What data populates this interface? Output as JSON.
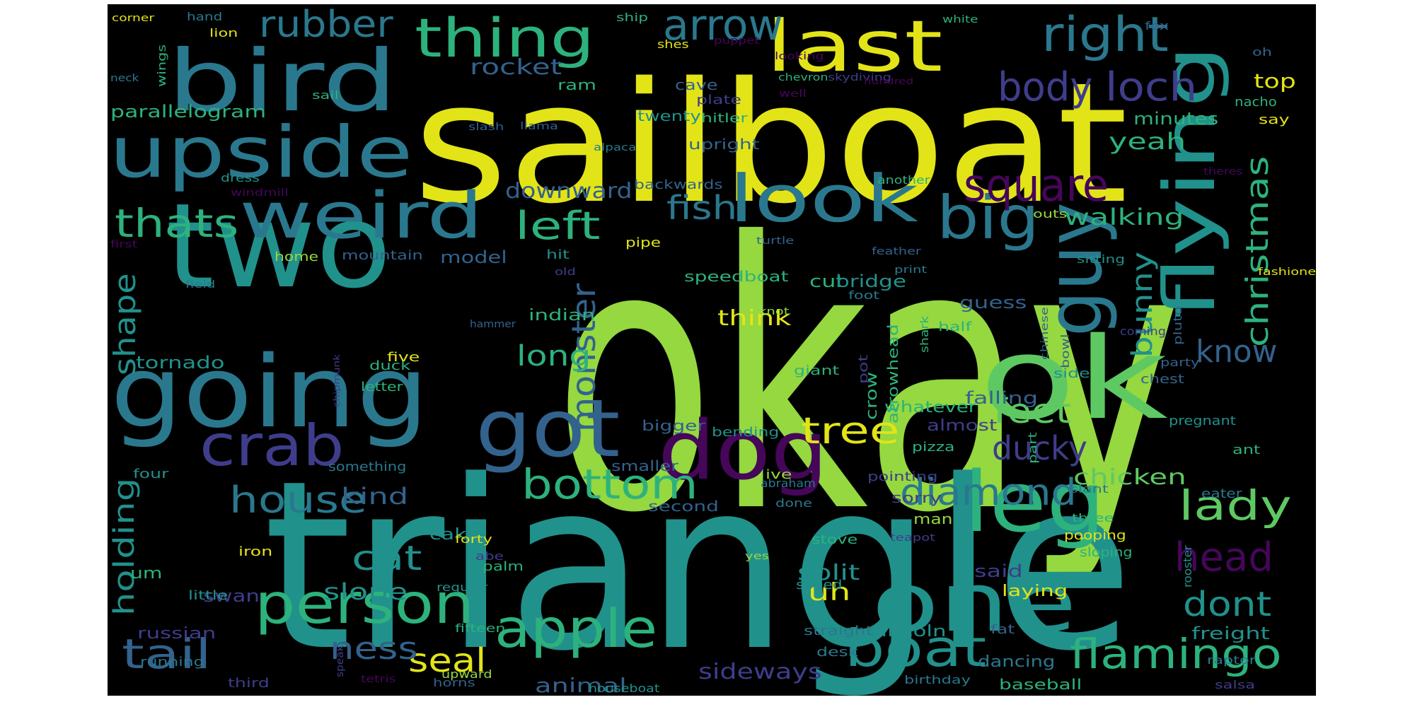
{
  "cloud": {
    "palette": {
      "purple": "#46065a",
      "indigo": "#3f3d8b",
      "blue": "#33628d",
      "steel": "#2a788e",
      "teal": "#21918c",
      "green": "#2db27d",
      "lime": "#5ec962",
      "yellowgreen": "#95d840",
      "yellow": "#e2e418"
    },
    "words": [
      {
        "text": "okay",
        "color": "yellowgreen"
      },
      {
        "text": "triangle",
        "color": "teal"
      },
      {
        "text": "sailboat",
        "color": "yellow"
      },
      {
        "text": "two",
        "color": "teal"
      },
      {
        "text": "ok",
        "color": "lime"
      },
      {
        "text": "going",
        "color": "steel"
      },
      {
        "text": "bird",
        "color": "steel"
      },
      {
        "text": "upside",
        "color": "steel"
      },
      {
        "text": "weird",
        "color": "steel"
      },
      {
        "text": "look",
        "color": "steel"
      },
      {
        "text": "got",
        "color": "blue"
      },
      {
        "text": "dog",
        "color": "purple"
      },
      {
        "text": "one",
        "color": "teal"
      },
      {
        "text": "leg",
        "color": "green"
      },
      {
        "text": "guy",
        "color": "steel"
      },
      {
        "text": "flying",
        "color": "teal"
      },
      {
        "text": "last",
        "color": "yellow"
      },
      {
        "text": "thing",
        "color": "green"
      },
      {
        "text": "arrow",
        "color": "steel"
      },
      {
        "text": "crab",
        "color": "indigo"
      },
      {
        "text": "person",
        "color": "green"
      },
      {
        "text": "apple",
        "color": "green"
      },
      {
        "text": "boat",
        "color": "teal"
      },
      {
        "text": "big",
        "color": "steel"
      },
      {
        "text": "right",
        "color": "steel"
      },
      {
        "text": "square",
        "color": "purple"
      },
      {
        "text": "loch",
        "color": "indigo"
      },
      {
        "text": "body",
        "color": "indigo"
      },
      {
        "text": "flamingo",
        "color": "green"
      },
      {
        "text": "lady",
        "color": "lime"
      },
      {
        "text": "bottom",
        "color": "green"
      },
      {
        "text": "tree",
        "color": "yellow"
      },
      {
        "text": "diamond",
        "color": "steel"
      },
      {
        "text": "head",
        "color": "purple"
      },
      {
        "text": "tail",
        "color": "blue"
      },
      {
        "text": "thats",
        "color": "green"
      },
      {
        "text": "rubber",
        "color": "steel"
      },
      {
        "text": "left",
        "color": "green"
      },
      {
        "text": "house",
        "color": "steel"
      },
      {
        "text": "monster",
        "color": "blue"
      },
      {
        "text": "christmas",
        "color": "green"
      },
      {
        "text": "fish",
        "color": "steel"
      },
      {
        "text": "feet",
        "color": "lime"
      },
      {
        "text": "ducky",
        "color": "indigo"
      },
      {
        "text": "seal",
        "color": "yellow"
      },
      {
        "text": "cat",
        "color": "teal"
      },
      {
        "text": "know",
        "color": "blue"
      },
      {
        "text": "dont",
        "color": "teal"
      },
      {
        "text": "shape",
        "color": "teal"
      },
      {
        "text": "holding",
        "color": "teal"
      },
      {
        "text": "long",
        "color": "green"
      },
      {
        "text": "bunny",
        "color": "teal"
      },
      {
        "text": "ness",
        "color": "blue"
      },
      {
        "text": "rocket",
        "color": "blue"
      },
      {
        "text": "yeah",
        "color": "green"
      },
      {
        "text": "walking",
        "color": "green"
      },
      {
        "text": "downward",
        "color": "blue"
      },
      {
        "text": "kind",
        "color": "blue"
      },
      {
        "text": "chicken",
        "color": "lime"
      },
      {
        "text": "slope",
        "color": "teal"
      },
      {
        "text": "sideways",
        "color": "indigo"
      },
      {
        "text": "animal",
        "color": "blue"
      },
      {
        "text": "split",
        "color": "teal"
      },
      {
        "text": "uh",
        "color": "yellow"
      },
      {
        "text": "top",
        "color": "yellow"
      },
      {
        "text": "think",
        "color": "yellow"
      },
      {
        "text": "parallelogram",
        "color": "green"
      },
      {
        "text": "minutes",
        "color": "green"
      },
      {
        "text": "model",
        "color": "blue"
      },
      {
        "text": "freight",
        "color": "teal"
      },
      {
        "text": "cut",
        "color": "green"
      },
      {
        "text": "bridge",
        "color": "teal"
      },
      {
        "text": "guess",
        "color": "blue"
      },
      {
        "text": "falling",
        "color": "blue"
      },
      {
        "text": "tornado",
        "color": "teal"
      },
      {
        "text": "swan",
        "color": "indigo"
      },
      {
        "text": "um",
        "color": "green"
      },
      {
        "text": "indian",
        "color": "green"
      },
      {
        "text": "russian",
        "color": "indigo"
      },
      {
        "text": "whatever",
        "color": "green"
      },
      {
        "text": "almost",
        "color": "indigo"
      },
      {
        "text": "speedboat",
        "color": "green"
      },
      {
        "text": "crow",
        "color": "green"
      },
      {
        "text": "arrowhead",
        "color": "green"
      },
      {
        "text": "sorry",
        "color": "indigo"
      },
      {
        "text": "said",
        "color": "indigo"
      },
      {
        "text": "laying",
        "color": "yellow"
      },
      {
        "text": "dancing",
        "color": "steel"
      },
      {
        "text": "baseball",
        "color": "green"
      },
      {
        "text": "lincoln",
        "color": "teal"
      },
      {
        "text": "ram",
        "color": "green"
      },
      {
        "text": "cave",
        "color": "blue"
      },
      {
        "text": "twenty",
        "color": "teal"
      },
      {
        "text": "upright",
        "color": "blue"
      },
      {
        "text": "hitler",
        "color": "green"
      },
      {
        "text": "plate",
        "color": "indigo"
      },
      {
        "text": "backwards",
        "color": "blue"
      },
      {
        "text": "bigger",
        "color": "blue"
      },
      {
        "text": "smaller",
        "color": "blue"
      },
      {
        "text": "second",
        "color": "blue"
      },
      {
        "text": "cake",
        "color": "teal"
      },
      {
        "text": "iron",
        "color": "yellow"
      },
      {
        "text": "bending",
        "color": "teal"
      },
      {
        "text": "hit",
        "color": "teal"
      },
      {
        "text": "pointing",
        "color": "indigo"
      },
      {
        "text": "half",
        "color": "green"
      },
      {
        "text": "giant",
        "color": "green"
      },
      {
        "text": "pot",
        "color": "indigo"
      },
      {
        "text": "ive",
        "color": "yellowgreen"
      },
      {
        "text": "duck",
        "color": "green"
      },
      {
        "text": "home",
        "color": "yellowgreen"
      },
      {
        "text": "mountain",
        "color": "blue"
      },
      {
        "text": "palm",
        "color": "green"
      },
      {
        "text": "man",
        "color": "yellowgreen"
      },
      {
        "text": "speed",
        "color": "teal"
      },
      {
        "text": "desk",
        "color": "steel"
      },
      {
        "text": "straight",
        "color": "steel"
      },
      {
        "text": "fat",
        "color": "blue"
      },
      {
        "text": "side",
        "color": "teal"
      },
      {
        "text": "chest",
        "color": "blue"
      },
      {
        "text": "pregnant",
        "color": "teal"
      },
      {
        "text": "ant",
        "color": "green"
      },
      {
        "text": "eater",
        "color": "steel"
      },
      {
        "text": "stove",
        "color": "green"
      },
      {
        "text": "pooping",
        "color": "yellow"
      },
      {
        "text": "sloping",
        "color": "green"
      },
      {
        "text": "pizza",
        "color": "green"
      },
      {
        "text": "sitting",
        "color": "teal"
      },
      {
        "text": "outs",
        "color": "yellowgreen"
      },
      {
        "text": "say",
        "color": "yellow"
      },
      {
        "text": "nacho",
        "color": "green"
      },
      {
        "text": "pipe",
        "color": "yellow"
      },
      {
        "text": "four",
        "color": "teal"
      },
      {
        "text": "five",
        "color": "yellow"
      },
      {
        "text": "letter",
        "color": "green"
      },
      {
        "text": "little",
        "color": "teal"
      },
      {
        "text": "running",
        "color": "steel"
      },
      {
        "text": "third",
        "color": "indigo"
      },
      {
        "text": "something",
        "color": "steel"
      },
      {
        "text": "regular",
        "color": "teal"
      },
      {
        "text": "forty",
        "color": "yellow"
      },
      {
        "text": "abe",
        "color": "indigo"
      },
      {
        "text": "fifteen",
        "color": "green"
      },
      {
        "text": "upward",
        "color": "yellowgreen"
      },
      {
        "text": "horns",
        "color": "blue"
      },
      {
        "text": "tetris",
        "color": "purple"
      },
      {
        "text": "speak",
        "color": "indigo"
      },
      {
        "text": "houseboat",
        "color": "teal"
      },
      {
        "text": "birthday",
        "color": "steel"
      },
      {
        "text": "raptor",
        "color": "steel"
      },
      {
        "text": "salsa",
        "color": "indigo"
      },
      {
        "text": "rooster",
        "color": "teal"
      },
      {
        "text": "yes",
        "color": "yellowgreen"
      },
      {
        "text": "done",
        "color": "steel"
      },
      {
        "text": "abraham",
        "color": "steel"
      },
      {
        "text": "three",
        "color": "green"
      },
      {
        "text": "slant",
        "color": "steel"
      },
      {
        "text": "teapot",
        "color": "indigo"
      },
      {
        "text": "shark",
        "color": "green"
      },
      {
        "text": "chinese",
        "color": "blue"
      },
      {
        "text": "bowl",
        "color": "blue"
      },
      {
        "text": "pluto",
        "color": "blue"
      },
      {
        "text": "part",
        "color": "green"
      },
      {
        "text": "party",
        "color": "blue"
      },
      {
        "text": "coming",
        "color": "indigo"
      },
      {
        "text": "fashioned",
        "color": "yellow"
      },
      {
        "text": "old",
        "color": "indigo"
      },
      {
        "text": "print",
        "color": "steel"
      },
      {
        "text": "feather",
        "color": "blue"
      },
      {
        "text": "turtle",
        "color": "blue"
      },
      {
        "text": "foot",
        "color": "steel"
      },
      {
        "text": "knot",
        "color": "yellowgreen"
      },
      {
        "text": "hammer",
        "color": "blue"
      },
      {
        "text": "chipmunk",
        "color": "indigo"
      },
      {
        "text": "field",
        "color": "steel"
      },
      {
        "text": "first",
        "color": "purple"
      },
      {
        "text": "dress",
        "color": "teal"
      },
      {
        "text": "windmill",
        "color": "purple"
      },
      {
        "text": "another",
        "color": "green"
      },
      {
        "text": "theres",
        "color": "purple"
      },
      {
        "text": "corner",
        "color": "yellow"
      },
      {
        "text": "hand",
        "color": "steel"
      },
      {
        "text": "lion",
        "color": "yellow"
      },
      {
        "text": "wings",
        "color": "green"
      },
      {
        "text": "neck",
        "color": "steel"
      },
      {
        "text": "sail",
        "color": "green"
      },
      {
        "text": "slash",
        "color": "blue"
      },
      {
        "text": "llama",
        "color": "blue"
      },
      {
        "text": "alpaca",
        "color": "steel"
      },
      {
        "text": "ship",
        "color": "green"
      },
      {
        "text": "shes",
        "color": "yellow"
      },
      {
        "text": "puppet",
        "color": "purple"
      },
      {
        "text": "looking",
        "color": "purple"
      },
      {
        "text": "chevron",
        "color": "green"
      },
      {
        "text": "well",
        "color": "purple"
      },
      {
        "text": "skydiving",
        "color": "indigo"
      },
      {
        "text": "hundred",
        "color": "purple"
      },
      {
        "text": "white",
        "color": "green"
      },
      {
        "text": "fox",
        "color": "blue"
      },
      {
        "text": "oh",
        "color": "blue"
      }
    ]
  }
}
